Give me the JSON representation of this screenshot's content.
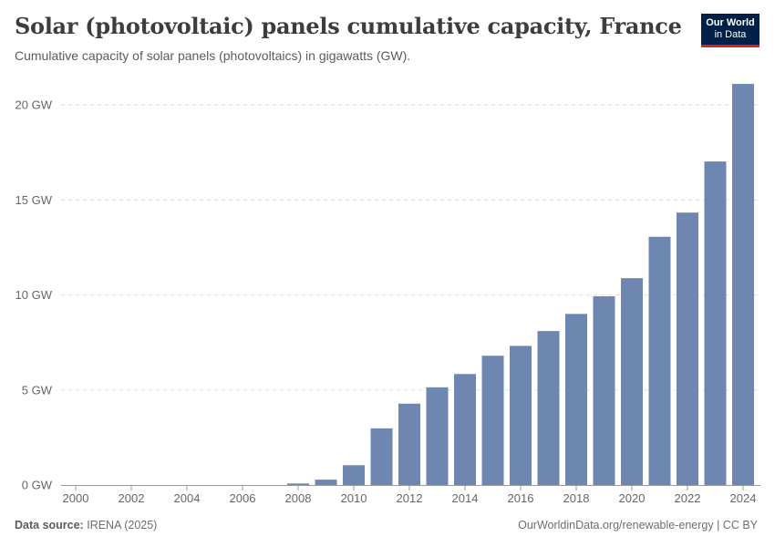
{
  "header": {
    "title": "Solar (photovoltaic) panels cumulative capacity, France",
    "subtitle": "Cumulative capacity of solar panels (photovoltaics) in gigawatts (GW).",
    "logo_line1": "Our World",
    "logo_line2": "in Data"
  },
  "footer": {
    "source_label": "Data source:",
    "source_value": "IRENA (2025)",
    "link_text": "OurWorldinData.org/renewable-energy",
    "license": "| CC BY"
  },
  "colors": {
    "bar": "#6d87b0",
    "logo_bg": "#002147",
    "logo_accent": "#ce261e"
  },
  "chart_data": {
    "type": "bar",
    "x_unit": "year",
    "y_unit": "GW",
    "x": [
      2000,
      2001,
      2002,
      2003,
      2004,
      2005,
      2006,
      2007,
      2008,
      2009,
      2010,
      2011,
      2012,
      2013,
      2014,
      2015,
      2016,
      2017,
      2018,
      2019,
      2020,
      2021,
      2022,
      2023,
      2024
    ],
    "values": [
      0.0,
      0.0,
      0.0,
      0.0,
      0.0,
      0.0,
      0.0,
      0.0,
      0.08,
      0.28,
      1.04,
      2.98,
      4.28,
      5.14,
      5.84,
      6.8,
      7.32,
      8.1,
      9.0,
      9.93,
      10.88,
      13.06,
      14.33,
      17.02,
      21.1
    ],
    "y_ticks": [
      0,
      5,
      10,
      15,
      20
    ],
    "y_tick_labels": [
      "0 GW",
      "5 GW",
      "10 GW",
      "15 GW",
      "20 GW"
    ],
    "x_ticks": [
      2000,
      2002,
      2004,
      2006,
      2008,
      2010,
      2012,
      2014,
      2016,
      2018,
      2020,
      2022,
      2024
    ],
    "x_tick_labels": [
      "2000",
      "2002",
      "2004",
      "2006",
      "2008",
      "2010",
      "2012",
      "2014",
      "2016",
      "2018",
      "2020",
      "2022",
      "2024"
    ],
    "ylim": [
      0,
      21.1
    ],
    "grid": "horizontal dashed",
    "legend": "none"
  }
}
